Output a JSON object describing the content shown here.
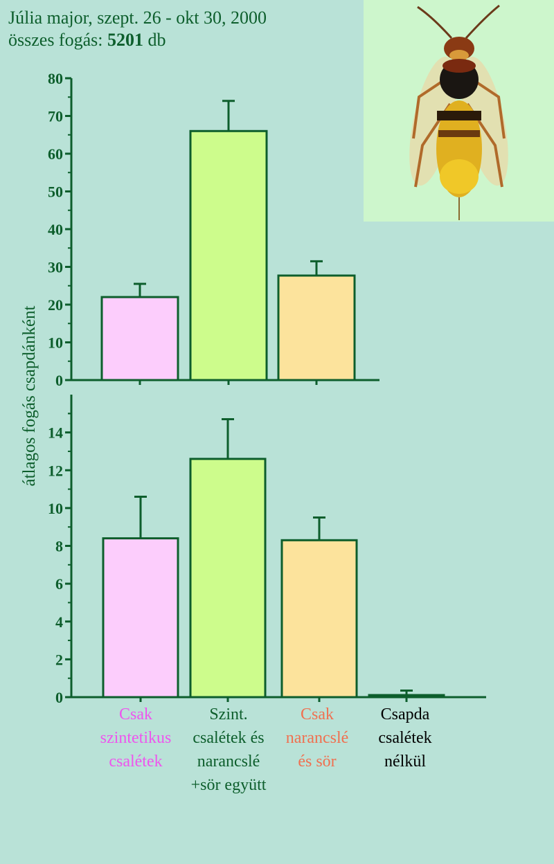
{
  "header": {
    "line1": "Júlia major, szept. 26 - okt 30, 2000",
    "line2_prefix": "összes fogás: ",
    "line2_count": "5201",
    "line2_unit": " db"
  },
  "image": {
    "subject": "hornet-illustration",
    "bg_color": "#cdf6cc"
  },
  "colors": {
    "background": "#b9e2d7",
    "axis": "#0d5e2c",
    "bar_outline": "#0d5e2c"
  },
  "categories": [
    {
      "lines": [
        "Csak",
        "szintetikus",
        "csalétek"
      ],
      "color": "#ee55ee"
    },
    {
      "lines": [
        "Szint.",
        "csalétek és",
        "narancslé",
        "+sör együtt"
      ],
      "color": "#0d5e2c"
    },
    {
      "lines": [
        "Csak",
        "narancslé",
        "és sör"
      ],
      "color": "#f07050"
    },
    {
      "lines": [
        "Csapda",
        "csalétek",
        "nélkül"
      ],
      "color": "#000000"
    }
  ],
  "chart_data": [
    {
      "type": "bar",
      "panel": "top",
      "categories": [
        "Csak szintetikus csalétek",
        "Szint. csalétek és narancslé +sör együtt",
        "Csak narancslé és sör"
      ],
      "values": [
        22,
        66,
        27.7
      ],
      "errors": [
        3.5,
        8,
        3.8
      ],
      "bar_colors": [
        "#fccdfc",
        "#cdfc8c",
        "#fce39c"
      ],
      "ylim": [
        0,
        80
      ],
      "yticks": [
        0,
        10,
        20,
        30,
        40,
        50,
        60,
        70,
        80
      ],
      "ylabel": "átlagos fogás csapdánként",
      "grid": false
    },
    {
      "type": "bar",
      "panel": "bottom",
      "categories": [
        "Csak szintetikus csalétek",
        "Szint. csalétek és narancslé +sör együtt",
        "Csak narancslé és sör",
        "Csapda csalétek nélkül"
      ],
      "values": [
        8.4,
        12.6,
        8.3,
        0.1
      ],
      "errors": [
        2.2,
        2.1,
        1.2,
        0.25
      ],
      "bar_colors": [
        "#fccdfc",
        "#cdfc8c",
        "#fce39c",
        "#0d5e2c"
      ],
      "ylim": [
        0,
        16
      ],
      "yticks": [
        0,
        2,
        4,
        6,
        8,
        10,
        12,
        14
      ],
      "ylabel": "átlagos fogás csapdánként",
      "grid": false
    }
  ]
}
